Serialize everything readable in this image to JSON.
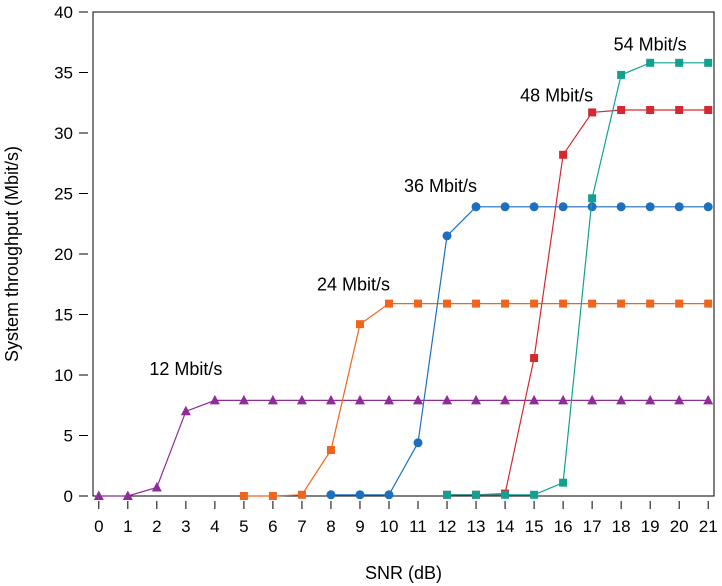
{
  "chart_data": {
    "type": "line",
    "title": "",
    "xlabel": "SNR (dB)",
    "ylabel": "System throughput (Mbit/s)",
    "xlim": [
      -0.2,
      21.2
    ],
    "ylim": [
      0,
      40
    ],
    "x_ticks": [
      0,
      1,
      2,
      3,
      4,
      5,
      6,
      7,
      8,
      9,
      10,
      11,
      12,
      13,
      14,
      15,
      16,
      17,
      18,
      19,
      20,
      21
    ],
    "y_ticks": [
      0,
      5,
      10,
      15,
      20,
      25,
      30,
      35,
      40
    ],
    "grid": false,
    "legend": "none",
    "series": [
      {
        "name": "12 Mbit/s",
        "color": "#8e2c9a",
        "marker": "triangle",
        "x": [
          0,
          1,
          2,
          3,
          4,
          5,
          6,
          7,
          8,
          9,
          10,
          11,
          12,
          13,
          14,
          15,
          16,
          17,
          18,
          19,
          20,
          21
        ],
        "y": [
          0,
          0,
          0.7,
          7.0,
          7.9,
          7.9,
          7.9,
          7.9,
          7.9,
          7.9,
          7.9,
          7.9,
          7.9,
          7.9,
          7.9,
          7.9,
          7.9,
          7.9,
          7.9,
          7.9,
          7.9,
          7.9
        ]
      },
      {
        "name": "24 Mbit/s",
        "color": "#f0651e",
        "marker": "square",
        "x": [
          5,
          6,
          7,
          8,
          9,
          10,
          11,
          12,
          13,
          14,
          15,
          16,
          17,
          18,
          19,
          20,
          21
        ],
        "y": [
          0,
          0,
          0.1,
          3.8,
          14.2,
          15.9,
          15.9,
          15.9,
          15.9,
          15.9,
          15.9,
          15.9,
          15.9,
          15.9,
          15.9,
          15.9,
          15.9
        ]
      },
      {
        "name": "36 Mbit/s",
        "color": "#1f6fbf",
        "marker": "circle",
        "x": [
          8,
          9,
          10,
          11,
          12,
          13,
          14,
          15,
          16,
          17,
          18,
          19,
          20,
          21
        ],
        "y": [
          0.1,
          0.1,
          0.1,
          4.4,
          21.5,
          23.9,
          23.9,
          23.9,
          23.9,
          23.9,
          23.9,
          23.9,
          23.9,
          23.9
        ]
      },
      {
        "name": "48 Mbit/s",
        "color": "#d42a2f",
        "marker": "square",
        "x": [
          12,
          13,
          14,
          15,
          16,
          17,
          18,
          19,
          20,
          21
        ],
        "y": [
          0.1,
          0.1,
          0.2,
          11.4,
          28.2,
          31.7,
          31.9,
          31.9,
          31.9,
          31.9
        ]
      },
      {
        "name": "54 Mbit/s",
        "color": "#13a090",
        "marker": "square",
        "x": [
          12,
          13,
          14,
          15,
          16,
          17,
          18,
          19,
          20,
          21
        ],
        "y": [
          0.1,
          0.1,
          0.1,
          0.1,
          1.1,
          24.6,
          34.8,
          35.8,
          35.8,
          35.8
        ]
      }
    ],
    "annotations": [
      {
        "text": "12 Mbit/s",
        "series": 0
      },
      {
        "text": "24 Mbit/s",
        "series": 1
      },
      {
        "text": "36 Mbit/s",
        "series": 2
      },
      {
        "text": "48 Mbit/s",
        "series": 3
      },
      {
        "text": "54 Mbit/s",
        "series": 4
      }
    ]
  }
}
